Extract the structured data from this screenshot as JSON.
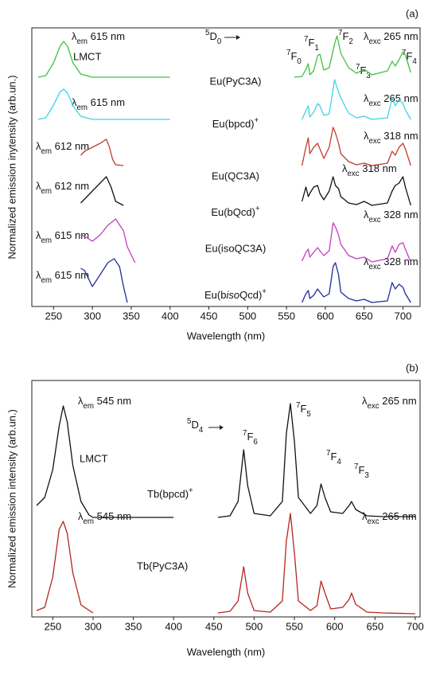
{
  "chart_data": [
    {
      "type": "line",
      "panel_label": "(a)",
      "xlabel": "Wavelength (nm)",
      "ylabel": "Normalized emission inytensity (arb.un.)",
      "xlim": [
        222,
        722
      ],
      "xticks": [
        250,
        300,
        350,
        400,
        450,
        500,
        550,
        600,
        650,
        700
      ],
      "ylim": [
        0,
        350
      ],
      "annotations": [
        "λem 615 nm",
        "LMCT",
        "5D0",
        "7F0",
        "7F1",
        "7F2",
        "7F3",
        "7F4",
        "λexc 265 nm",
        "λem 615 nm",
        "λexc 265 nm",
        "λem 612 nm",
        "λexc 318 nm",
        "λem 612 nm",
        "λexc 318 nm",
        "λem 615 nm",
        "λexc 328 nm",
        "λem 615 nm",
        "λexc 328 nm"
      ],
      "series": [
        {
          "name": "Eu(PyC3A)",
          "color": "#3ec23e",
          "x": [
            230,
            240,
            250,
            258,
            263,
            268,
            275,
            285,
            300,
            400,
            null,
            560,
            570,
            575,
            578,
            580,
            585,
            590,
            593,
            598,
            605,
            612,
            615,
            620,
            630,
            640,
            650,
            660,
            680,
            686,
            690,
            695,
            700,
            703,
            710
          ],
          "values": [
            288,
            290,
            306,
            326,
            333,
            327,
            306,
            292,
            288,
            288,
            null,
            288,
            289,
            298,
            305,
            291,
            296,
            315,
            317,
            297,
            300,
            330,
            340,
            318,
            300,
            293,
            298,
            291,
            296,
            308,
            302,
            310,
            320,
            316,
            294
          ]
        },
        {
          "name": "Eu(bpcd)+",
          "color": "#3fd3e3",
          "x": [
            230,
            240,
            250,
            258,
            263,
            268,
            275,
            285,
            300,
            400,
            null,
            570,
            575,
            578,
            580,
            585,
            590,
            593,
            598,
            605,
            612,
            615,
            620,
            630,
            640,
            650,
            660,
            680,
            686,
            690,
            695,
            700,
            703,
            710
          ],
          "values": [
            235,
            237,
            253,
            269,
            273,
            268,
            252,
            239,
            235,
            235,
            null,
            235,
            246,
            252,
            238,
            244,
            255,
            252,
            240,
            242,
            285,
            275,
            262,
            243,
            237,
            239,
            235,
            237,
            262,
            252,
            260,
            255,
            247,
            235
          ]
        },
        {
          "name": "Eu(QC3A)",
          "color": "#c23a32",
          "x": [
            285,
            290,
            300,
            310,
            318,
            322,
            326,
            330,
            340,
            null,
            570,
            575,
            578,
            580,
            585,
            590,
            593,
            598,
            605,
            610,
            613,
            617,
            620,
            630,
            640,
            650,
            660,
            680,
            686,
            690,
            695,
            700,
            703,
            710
          ],
          "values": [
            190,
            195,
            200,
            205,
            210,
            200,
            185,
            178,
            177,
            null,
            177,
            200,
            212,
            192,
            200,
            205,
            198,
            186,
            200,
            225,
            218,
            205,
            192,
            182,
            178,
            180,
            177,
            180,
            195,
            190,
            200,
            205,
            198,
            177
          ]
        },
        {
          "name": "Eu(bQcd)+",
          "color": "#111111",
          "x": [
            285,
            290,
            300,
            310,
            318,
            324,
            330,
            340,
            null,
            570,
            575,
            578,
            580,
            585,
            590,
            593,
            598,
            605,
            610,
            613,
            617,
            620,
            630,
            640,
            650,
            660,
            680,
            686,
            690,
            695,
            700,
            703,
            710
          ],
          "values": [
            130,
            135,
            145,
            155,
            163,
            150,
            132,
            127,
            null,
            132,
            150,
            138,
            142,
            150,
            152,
            142,
            134,
            145,
            163,
            152,
            148,
            138,
            130,
            128,
            132,
            127,
            130,
            145,
            152,
            155,
            163,
            150,
            127
          ]
        },
        {
          "name": "Eu(isoQC3A)",
          "color": "#c43cc4",
          "x": [
            285,
            290,
            300,
            310,
            320,
            330,
            340,
            345,
            355,
            null,
            570,
            575,
            578,
            580,
            585,
            590,
            593,
            598,
            605,
            610,
            613,
            617,
            620,
            630,
            640,
            650,
            660,
            680,
            686,
            690,
            695,
            700,
            703,
            710
          ],
          "values": [
            90,
            88,
            82,
            90,
            102,
            110,
            95,
            75,
            55,
            null,
            57,
            68,
            72,
            62,
            68,
            74,
            70,
            64,
            70,
            105,
            100,
            90,
            78,
            64,
            60,
            62,
            56,
            60,
            76,
            68,
            78,
            80,
            72,
            56
          ]
        },
        {
          "name": "Eu(bisoQcd)+",
          "color": "#1f2a9c",
          "x": [
            285,
            290,
            300,
            310,
            320,
            328,
            335,
            340,
            345,
            null,
            570,
            575,
            578,
            580,
            585,
            590,
            593,
            598,
            605,
            610,
            613,
            617,
            620,
            630,
            640,
            650,
            660,
            680,
            686,
            690,
            695,
            700,
            703,
            710
          ],
          "values": [
            48,
            45,
            25,
            40,
            55,
            60,
            50,
            25,
            5,
            null,
            5,
            16,
            20,
            10,
            14,
            22,
            18,
            12,
            16,
            50,
            55,
            40,
            18,
            10,
            7,
            9,
            5,
            7,
            30,
            22,
            28,
            24,
            16,
            5
          ]
        }
      ]
    },
    {
      "type": "line",
      "panel_label": "(b)",
      "xlabel": "Wavelength (nm)",
      "ylabel": "Normalized emission intensity (arb.un.)",
      "xlim": [
        224,
        706
      ],
      "xticks": [
        250,
        300,
        350,
        400,
        450,
        500,
        550,
        600,
        650,
        700
      ],
      "ylim": [
        0,
        297
      ],
      "annotations": [
        "λem 545 nm",
        "LMCT",
        "5D4",
        "7F6",
        "7F5",
        "7F4",
        "7F3",
        "λexc 265 nm",
        "λem 545 nm",
        "λexc 265 nm"
      ],
      "series": [
        {
          "name": "Tb(bpcd)+",
          "color": "#111111",
          "x": [
            230,
            240,
            250,
            258,
            263,
            268,
            275,
            285,
            295,
            300,
            400,
            null,
            455,
            470,
            480,
            487,
            492,
            500,
            520,
            535,
            540,
            545,
            550,
            555,
            570,
            578,
            583,
            588,
            595,
            610,
            618,
            621,
            626,
            640,
            660,
            700
          ],
          "values": [
            140,
            150,
            185,
            240,
            265,
            245,
            190,
            145,
            128,
            125,
            125,
            null,
            125,
            127,
            145,
            210,
            165,
            130,
            127,
            145,
            230,
            268,
            220,
            150,
            130,
            140,
            167,
            150,
            132,
            130,
            140,
            145,
            135,
            127,
            126,
            126
          ]
        },
        {
          "name": "Tb(PyC3A)",
          "color": "#b3261e",
          "x": [
            230,
            240,
            250,
            258,
            263,
            268,
            275,
            285,
            300,
            null,
            455,
            470,
            480,
            487,
            492,
            500,
            520,
            535,
            540,
            545,
            550,
            555,
            570,
            578,
            583,
            588,
            595,
            610,
            618,
            621,
            626,
            640,
            660,
            700
          ],
          "values": [
            8,
            12,
            50,
            110,
            120,
            105,
            55,
            15,
            5,
            null,
            5,
            7,
            20,
            63,
            30,
            8,
            6,
            20,
            95,
            130,
            80,
            20,
            8,
            14,
            45,
            30,
            10,
            12,
            22,
            30,
            16,
            6,
            5,
            4
          ]
        }
      ]
    }
  ]
}
